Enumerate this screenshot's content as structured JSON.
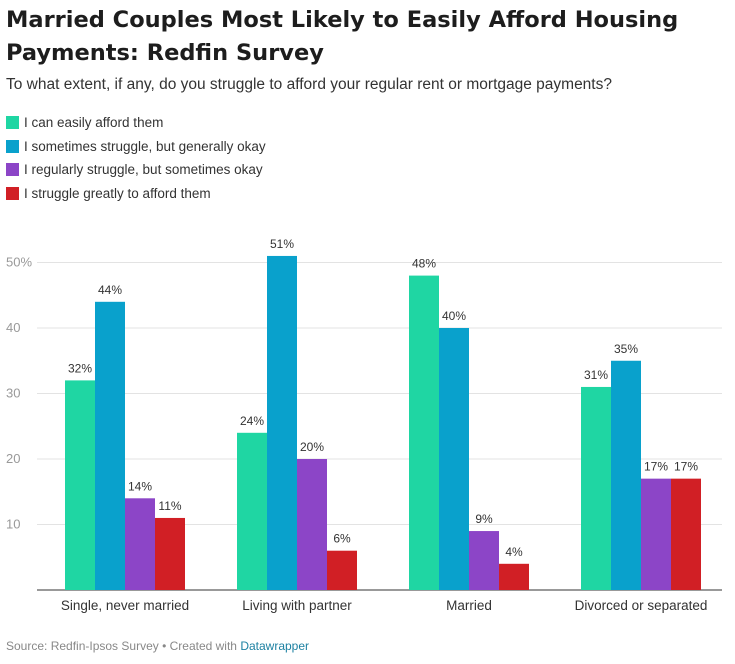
{
  "title": "Married Couples Most Likely to Easily Afford Housing Payments: Redfin Survey",
  "subtitle": "To what extent, if any, do you struggle to afford your regular rent or mortgage payments?",
  "source": {
    "text": "Source: Redfin-Ipsos Survey • Created with ",
    "link": "Datawrapper"
  },
  "chart_data": {
    "type": "bar",
    "title": "Married Couples Most Likely to Easily Afford Housing Payments: Redfin Survey",
    "subtitle": "To what extent, if any, do you struggle to afford your regular rent or mortgage payments?",
    "categories": [
      "Single, never married",
      "Living with partner",
      "Married",
      "Divorced or separated"
    ],
    "series": [
      {
        "name": "I can easily afford them",
        "color": "#1fd6a3",
        "values": [
          32,
          24,
          48,
          31
        ]
      },
      {
        "name": "I sometimes struggle, but generally okay",
        "color": "#09a1cc",
        "values": [
          44,
          51,
          40,
          35
        ]
      },
      {
        "name": "I regularly struggle, but sometimes okay",
        "color": "#8c45c7",
        "values": [
          14,
          20,
          9,
          17
        ]
      },
      {
        "name": "I struggle greatly to afford them",
        "color": "#d11f25",
        "values": [
          11,
          6,
          4,
          17
        ]
      }
    ],
    "value_suffix": "%",
    "y_ticks": [
      "10",
      "20",
      "30",
      "40",
      "50%"
    ],
    "y_tick_values": [
      10,
      20,
      30,
      40,
      50
    ],
    "ylim": [
      0,
      50
    ],
    "xlabel": "",
    "ylabel": "",
    "grid": true,
    "legend_position": "top-left"
  }
}
